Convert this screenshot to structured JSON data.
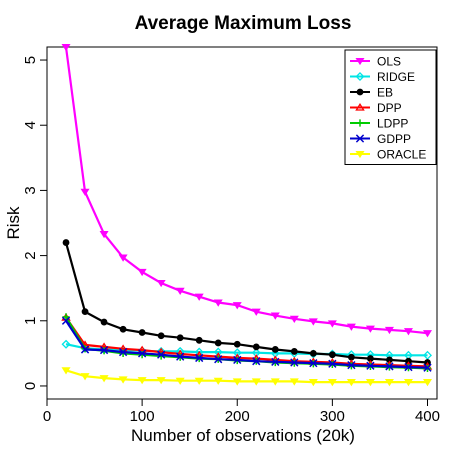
{
  "chart_data": {
    "type": "line",
    "title": "Average Maximum Loss",
    "xlabel": "Number of observations (20k)",
    "ylabel": "Risk",
    "xlim": [
      0,
      410
    ],
    "ylim": [
      -0.2,
      5.2
    ],
    "xticks": [
      0,
      100,
      200,
      300,
      400
    ],
    "yticks": [
      0,
      1,
      2,
      3,
      4,
      5
    ],
    "legend_position": "top-right",
    "x": [
      20,
      40,
      60,
      80,
      100,
      120,
      140,
      160,
      180,
      200,
      220,
      240,
      260,
      280,
      300,
      320,
      340,
      360,
      380,
      400
    ],
    "series": [
      {
        "name": "OLS",
        "color": "#ff00ff",
        "marker": "triangle-down",
        "values": [
          5.2,
          2.98,
          2.33,
          1.97,
          1.75,
          1.58,
          1.46,
          1.37,
          1.28,
          1.24,
          1.14,
          1.08,
          1.03,
          0.99,
          0.96,
          0.91,
          0.88,
          0.86,
          0.84,
          0.81
        ]
      },
      {
        "name": "RIDGE",
        "color": "#00e5e5",
        "marker": "diamond",
        "values": [
          0.64,
          0.58,
          0.56,
          0.55,
          0.54,
          0.53,
          0.53,
          0.52,
          0.52,
          0.51,
          0.51,
          0.5,
          0.5,
          0.49,
          0.49,
          0.48,
          0.48,
          0.47,
          0.47,
          0.47
        ]
      },
      {
        "name": "EB",
        "color": "#000000",
        "marker": "circle",
        "values": [
          2.2,
          1.14,
          0.98,
          0.87,
          0.82,
          0.77,
          0.74,
          0.7,
          0.66,
          0.64,
          0.6,
          0.56,
          0.53,
          0.5,
          0.48,
          0.44,
          0.42,
          0.4,
          0.38,
          0.36
        ]
      },
      {
        "name": "DPP",
        "color": "#ff0000",
        "marker": "triangle-up",
        "values": [
          1.05,
          0.63,
          0.6,
          0.57,
          0.55,
          0.52,
          0.49,
          0.47,
          0.45,
          0.43,
          0.42,
          0.4,
          0.38,
          0.37,
          0.36,
          0.34,
          0.33,
          0.32,
          0.31,
          0.3
        ]
      },
      {
        "name": "LDPP",
        "color": "#00cc00",
        "marker": "plus",
        "values": [
          1.06,
          0.57,
          0.54,
          0.5,
          0.48,
          0.46,
          0.44,
          0.42,
          0.41,
          0.39,
          0.38,
          0.36,
          0.35,
          0.34,
          0.33,
          0.31,
          0.3,
          0.29,
          0.28,
          0.27
        ]
      },
      {
        "name": "GDPP",
        "color": "#0000cc",
        "marker": "cross",
        "values": [
          1.0,
          0.56,
          0.55,
          0.52,
          0.5,
          0.48,
          0.45,
          0.43,
          0.41,
          0.4,
          0.38,
          0.37,
          0.36,
          0.35,
          0.34,
          0.32,
          0.31,
          0.3,
          0.29,
          0.28
        ]
      },
      {
        "name": "ORACLE",
        "color": "#ffff00",
        "marker": "triangle-down",
        "values": [
          0.24,
          0.15,
          0.12,
          0.1,
          0.09,
          0.09,
          0.08,
          0.08,
          0.08,
          0.07,
          0.07,
          0.07,
          0.07,
          0.06,
          0.06,
          0.06,
          0.06,
          0.06,
          0.06,
          0.06
        ]
      }
    ]
  }
}
